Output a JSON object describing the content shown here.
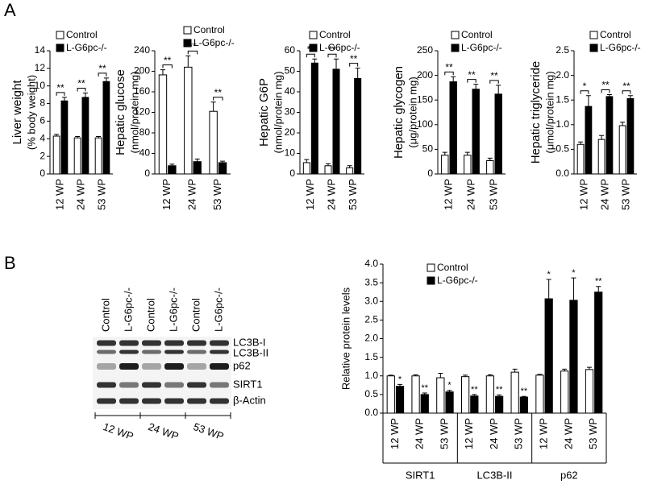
{
  "panel_labels": [
    "A",
    "B"
  ],
  "blot": {
    "lanes": [
      "Control",
      "L-G6pc-/-",
      "Control",
      "L-G6pc-/-",
      "Control",
      "L-G6pc-/-"
    ],
    "bands": [
      "LC3B-I",
      "LC3B-II",
      "p62",
      "SIRT1",
      "β-Actin"
    ],
    "times": [
      "12 WP",
      "24 WP",
      "53 WP"
    ]
  },
  "chart_data": [
    {
      "type": "bar",
      "ylabel": "Liver weight",
      "ylabel_sub": "(% body weight)",
      "categories": [
        "12 WP",
        "24 WP",
        "53 WP"
      ],
      "ylim": [
        0,
        14
      ],
      "yticks": [
        0,
        2,
        4,
        6,
        8,
        10,
        12,
        14
      ],
      "series": [
        {
          "name": "Control",
          "color": "#ffffff",
          "values": [
            4.3,
            4.1,
            4.1
          ],
          "errors": [
            0.2,
            0.15,
            0.15
          ]
        },
        {
          "name": "L-G6pc-/-",
          "color": "#000000",
          "values": [
            8.3,
            8.7,
            10.5
          ],
          "errors": [
            0.4,
            0.5,
            0.4
          ],
          "significance": [
            "**",
            "**",
            "**"
          ]
        }
      ]
    },
    {
      "type": "bar",
      "ylabel": "Hepatic glucose",
      "ylabel_sub": "(nmol/protein mg)",
      "categories": [
        "12 WP",
        "24 WP",
        "53 WP"
      ],
      "ylim": [
        0,
        240
      ],
      "yticks": [
        0,
        40,
        80,
        120,
        160,
        200,
        240
      ],
      "series": [
        {
          "name": "Control",
          "color": "#ffffff",
          "values": [
            193,
            208,
            122
          ],
          "errors": [
            10,
            22,
            18
          ]
        },
        {
          "name": "L-G6pc-/-",
          "color": "#000000",
          "values": [
            16,
            24,
            22
          ],
          "errors": [
            3,
            5,
            3
          ],
          "significance": [
            "**",
            "**",
            "**"
          ]
        }
      ]
    },
    {
      "type": "bar",
      "ylabel": "Hepatic G6P",
      "ylabel_sub": "(nmol/protein mg)",
      "categories": [
        "12 WP",
        "24 WP",
        "53 WP"
      ],
      "ylim": [
        0,
        60
      ],
      "yticks": [
        0,
        10,
        20,
        30,
        40,
        50,
        60
      ],
      "series": [
        {
          "name": "Control",
          "color": "#ffffff",
          "values": [
            5.5,
            4,
            3
          ],
          "errors": [
            1.5,
            1,
            1
          ]
        },
        {
          "name": "L-G6pc-/-",
          "color": "#000000",
          "values": [
            54,
            51,
            46.5
          ],
          "errors": [
            2,
            5,
            5
          ],
          "significance": [
            "**",
            "**",
            "**"
          ]
        }
      ]
    },
    {
      "type": "bar",
      "ylabel": "Hepatic glycogen",
      "ylabel_sub": "(μg/protein mg)",
      "categories": [
        "12 WP",
        "24 WP",
        "53 WP"
      ],
      "ylim": [
        0,
        250
      ],
      "yticks": [
        0,
        50,
        100,
        150,
        200,
        250
      ],
      "series": [
        {
          "name": "Control",
          "color": "#ffffff",
          "values": [
            38,
            38,
            27
          ],
          "errors": [
            6,
            6,
            5
          ]
        },
        {
          "name": "L-G6pc-/-",
          "color": "#000000",
          "values": [
            187,
            172,
            162
          ],
          "errors": [
            10,
            10,
            18
          ],
          "significance": [
            "**",
            "**",
            "**"
          ]
        }
      ]
    },
    {
      "type": "bar",
      "ylabel": "Hepatic triglyceride",
      "ylabel_sub": "(μmol/protein mg)",
      "categories": [
        "12 WP",
        "24 WP",
        "53 WP"
      ],
      "ylim": [
        0,
        2.5
      ],
      "yticks": [
        {
          "value": 0,
          "label": "0.0"
        },
        0.5,
        {
          "value": 1,
          "label": "1.0"
        },
        1.5,
        {
          "value": 2,
          "label": "2.0"
        },
        2.5
      ],
      "series": [
        {
          "name": "Control",
          "color": "#ffffff",
          "values": [
            0.6,
            0.7,
            0.98
          ],
          "errors": [
            0.05,
            0.08,
            0.07
          ]
        },
        {
          "name": "L-G6pc-/-",
          "color": "#000000",
          "values": [
            1.37,
            1.57,
            1.53
          ],
          "errors": [
            0.22,
            0.04,
            0.06
          ],
          "significance": [
            "*",
            "**",
            "**"
          ]
        }
      ]
    },
    {
      "type": "bar",
      "ylabel": "Relative protein levels",
      "categories": [
        "12 WP",
        "24 WP",
        "53 WP",
        "12 WP",
        "24 WP",
        "53 WP",
        "12 WP",
        "24 WP",
        "53 WP"
      ],
      "groups": [
        "SIRT1",
        "LC3B-II",
        "p62"
      ],
      "ylim": [
        0,
        4
      ],
      "yticks": [
        {
          "value": 0,
          "label": "0.0"
        },
        0.5,
        {
          "value": 1,
          "label": "1.0"
        },
        1.5,
        {
          "value": 2,
          "label": "2.0"
        },
        2.5,
        {
          "value": 3,
          "label": "3.0"
        },
        3.5,
        {
          "value": 4,
          "label": "4.0"
        }
      ],
      "series": [
        {
          "name": "Control",
          "color": "#ffffff",
          "values": [
            1.0,
            1.0,
            0.95,
            0.98,
            1.0,
            1.1,
            1.02,
            1.13,
            1.17
          ],
          "errors": [
            0.02,
            0.03,
            0.12,
            0.04,
            0.03,
            0.08,
            0.02,
            0.05,
            0.06
          ]
        },
        {
          "name": "L-G6pc-/-",
          "color": "#000000",
          "values": [
            0.72,
            0.5,
            0.57,
            0.46,
            0.45,
            0.43,
            3.07,
            3.03,
            3.25
          ],
          "errors": [
            0.05,
            0.04,
            0.04,
            0.04,
            0.04,
            0.02,
            0.52,
            0.6,
            0.15
          ],
          "significance": [
            "*",
            "**",
            "*",
            "**",
            "**",
            "**",
            "*",
            "*",
            "**"
          ]
        }
      ]
    }
  ]
}
